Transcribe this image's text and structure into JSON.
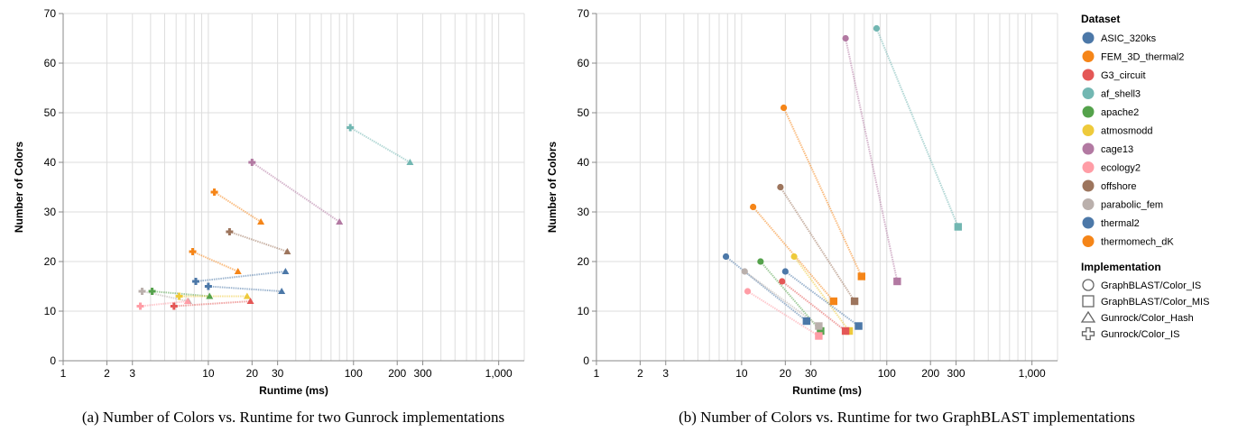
{
  "colors": {
    "ASIC_320ks": "#4c78a8",
    "FEM_3D_thermal2": "#f58518",
    "G3_circuit": "#e45756",
    "af_shell3": "#72b7b2",
    "apache2": "#54a24b",
    "atmosmodd": "#eeca3b",
    "cage13": "#b279a2",
    "ecology2": "#ff9da6",
    "offshore": "#9d755d",
    "parabolic_fem": "#bab0ac",
    "thermal2": "#4c78a8",
    "thermomech_dK": "#f58518"
  },
  "legend": {
    "dataset_title": "Dataset",
    "datasets": [
      "ASIC_320ks",
      "FEM_3D_thermal2",
      "G3_circuit",
      "af_shell3",
      "apache2",
      "atmosmodd",
      "cage13",
      "ecology2",
      "offshore",
      "parabolic_fem",
      "thermal2",
      "thermomech_dK"
    ],
    "implementation_title": "Implementation",
    "implementations": [
      {
        "label": "GraphBLAST/Color_IS",
        "shape": "circle"
      },
      {
        "label": "GraphBLAST/Color_MIS",
        "shape": "square"
      },
      {
        "label": "Gunrock/Color_Hash",
        "shape": "triangle"
      },
      {
        "label": "Gunrock/Color_IS",
        "shape": "cross"
      }
    ]
  },
  "chart_data": [
    {
      "type": "scatter",
      "title": "",
      "xlabel": "Runtime (ms)",
      "ylabel": "Number of Colors",
      "xscale": "log",
      "xlim": [
        1,
        1500
      ],
      "ylim": [
        0,
        70
      ],
      "xticks": [
        1,
        2,
        3,
        10,
        20,
        30,
        100,
        200,
        300,
        1000
      ],
      "xtick_labels": [
        "1",
        "2",
        "3",
        "10",
        "20",
        "30",
        "100",
        "200",
        "300",
        "1,000"
      ],
      "yticks": [
        0,
        10,
        20,
        30,
        40,
        50,
        60,
        70
      ],
      "grid": true,
      "caption": "(a) Number of Colors vs. Runtime for two Gunrock implementations",
      "pairs": [
        {
          "dataset": "af_shell3",
          "a": {
            "shape": "cross",
            "x": 95,
            "y": 47
          },
          "b": {
            "shape": "triangle",
            "x": 245,
            "y": 40
          }
        },
        {
          "dataset": "cage13",
          "a": {
            "shape": "cross",
            "x": 20,
            "y": 40
          },
          "b": {
            "shape": "triangle",
            "x": 80,
            "y": 28
          }
        },
        {
          "dataset": "FEM_3D_thermal2",
          "a": {
            "shape": "cross",
            "x": 11,
            "y": 34
          },
          "b": {
            "shape": "triangle",
            "x": 23,
            "y": 28
          }
        },
        {
          "dataset": "offshore",
          "a": {
            "shape": "cross",
            "x": 14,
            "y": 26
          },
          "b": {
            "shape": "triangle",
            "x": 35,
            "y": 22
          }
        },
        {
          "dataset": "thermomech_dK",
          "a": {
            "shape": "cross",
            "x": 7.8,
            "y": 22
          },
          "b": {
            "shape": "triangle",
            "x": 16,
            "y": 18
          }
        },
        {
          "dataset": "ASIC_320ks",
          "a": {
            "shape": "cross",
            "x": 8.2,
            "y": 16
          },
          "b": {
            "shape": "triangle",
            "x": 34,
            "y": 18
          }
        },
        {
          "dataset": "thermal2",
          "a": {
            "shape": "cross",
            "x": 10,
            "y": 15
          },
          "b": {
            "shape": "triangle",
            "x": 32,
            "y": 14
          }
        },
        {
          "dataset": "parabolic_fem",
          "a": {
            "shape": "cross",
            "x": 3.5,
            "y": 14
          },
          "b": {
            "shape": "triangle",
            "x": 7.3,
            "y": 12
          }
        },
        {
          "dataset": "apache2",
          "a": {
            "shape": "cross",
            "x": 4.1,
            "y": 14
          },
          "b": {
            "shape": "triangle",
            "x": 10.2,
            "y": 13
          }
        },
        {
          "dataset": "atmosmodd",
          "a": {
            "shape": "cross",
            "x": 6.3,
            "y": 13
          },
          "b": {
            "shape": "triangle",
            "x": 18.5,
            "y": 13
          }
        },
        {
          "dataset": "G3_circuit",
          "a": {
            "shape": "cross",
            "x": 5.8,
            "y": 11
          },
          "b": {
            "shape": "triangle",
            "x": 19.5,
            "y": 12
          }
        },
        {
          "dataset": "ecology2",
          "a": {
            "shape": "cross",
            "x": 3.4,
            "y": 11
          },
          "b": {
            "shape": "triangle",
            "x": 7.2,
            "y": 12
          }
        }
      ]
    },
    {
      "type": "scatter",
      "title": "",
      "xlabel": "Runtime (ms)",
      "ylabel": "Number of Colors",
      "xscale": "log",
      "xlim": [
        1,
        1500
      ],
      "ylim": [
        0,
        70
      ],
      "xticks": [
        1,
        2,
        3,
        10,
        20,
        30,
        100,
        200,
        300,
        1000
      ],
      "xtick_labels": [
        "1",
        "2",
        "3",
        "10",
        "20",
        "30",
        "100",
        "200",
        "300",
        "1,000"
      ],
      "yticks": [
        0,
        10,
        20,
        30,
        40,
        50,
        60,
        70
      ],
      "grid": true,
      "caption": "(b) Number of Colors vs. Runtime for two GraphBLAST implementations",
      "pairs": [
        {
          "dataset": "af_shell3",
          "a": {
            "shape": "circle",
            "x": 85,
            "y": 67
          },
          "b": {
            "shape": "square",
            "x": 310,
            "y": 27
          }
        },
        {
          "dataset": "cage13",
          "a": {
            "shape": "circle",
            "x": 52,
            "y": 65
          },
          "b": {
            "shape": "square",
            "x": 118,
            "y": 16
          }
        },
        {
          "dataset": "FEM_3D_thermal2",
          "a": {
            "shape": "circle",
            "x": 19.5,
            "y": 51
          },
          "b": {
            "shape": "square",
            "x": 67,
            "y": 17
          }
        },
        {
          "dataset": "offshore",
          "a": {
            "shape": "circle",
            "x": 18.5,
            "y": 35
          },
          "b": {
            "shape": "square",
            "x": 60,
            "y": 12
          }
        },
        {
          "dataset": "thermomech_dK",
          "a": {
            "shape": "circle",
            "x": 12,
            "y": 31
          },
          "b": {
            "shape": "square",
            "x": 43,
            "y": 12
          }
        },
        {
          "dataset": "atmosmodd",
          "a": {
            "shape": "circle",
            "x": 23,
            "y": 21
          },
          "b": {
            "shape": "square",
            "x": 55,
            "y": 6
          }
        },
        {
          "dataset": "ASIC_320ks",
          "a": {
            "shape": "circle",
            "x": 7.8,
            "y": 21
          },
          "b": {
            "shape": "square",
            "x": 28,
            "y": 8
          }
        },
        {
          "dataset": "apache2",
          "a": {
            "shape": "circle",
            "x": 13.5,
            "y": 20
          },
          "b": {
            "shape": "square",
            "x": 35,
            "y": 6
          }
        },
        {
          "dataset": "thermal2",
          "a": {
            "shape": "circle",
            "x": 20,
            "y": 18
          },
          "b": {
            "shape": "square",
            "x": 64,
            "y": 7
          }
        },
        {
          "dataset": "parabolic_fem",
          "a": {
            "shape": "circle",
            "x": 10.5,
            "y": 18
          },
          "b": {
            "shape": "square",
            "x": 34,
            "y": 7
          }
        },
        {
          "dataset": "G3_circuit",
          "a": {
            "shape": "circle",
            "x": 19,
            "y": 16
          },
          "b": {
            "shape": "square",
            "x": 52,
            "y": 6
          }
        },
        {
          "dataset": "ecology2",
          "a": {
            "shape": "circle",
            "x": 11,
            "y": 14
          },
          "b": {
            "shape": "square",
            "x": 34,
            "y": 5
          }
        }
      ]
    }
  ]
}
